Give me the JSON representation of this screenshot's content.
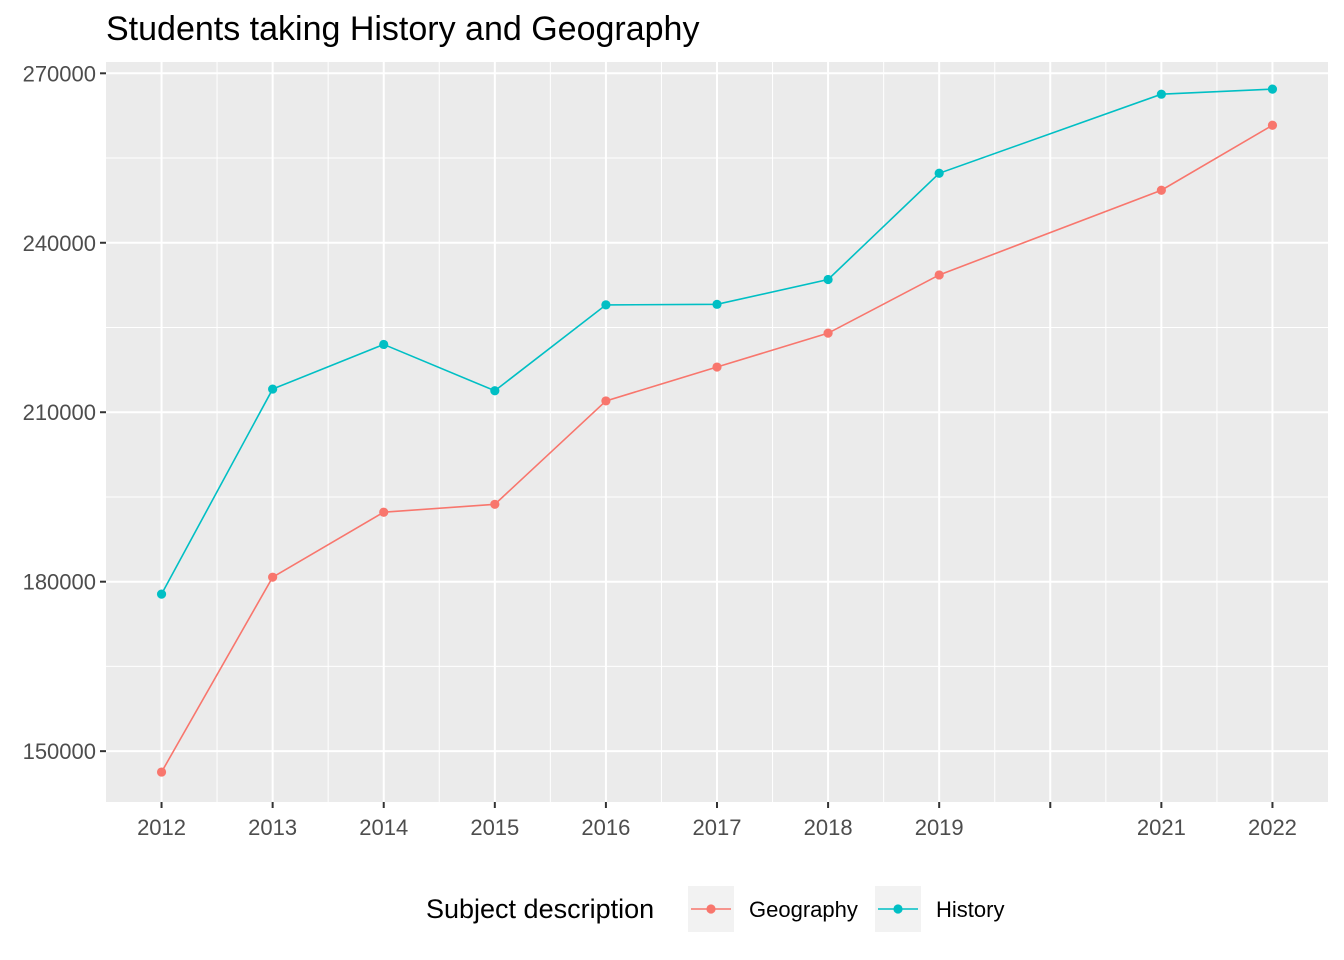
{
  "chart_data": {
    "type": "line",
    "title": "Students taking History and Geography",
    "xlabel": "",
    "ylabel": "",
    "x": [
      2012,
      2013,
      2014,
      2015,
      2016,
      2017,
      2018,
      2019,
      2021,
      2022
    ],
    "x_tick_labels": [
      "2012",
      "2013",
      "2014",
      "2015",
      "2016",
      "2017",
      "2018",
      "2019",
      "",
      "2021",
      "2022"
    ],
    "y_tick_labels": [
      "150000",
      "180000",
      "210000",
      "240000",
      "270000"
    ],
    "xlim": [
      2011.5,
      2022.5
    ],
    "ylim": [
      141000,
      272000
    ],
    "grid": true,
    "legend": {
      "title": "Subject description",
      "position": "bottom"
    },
    "series": [
      {
        "name": "Geography",
        "color": "#F8766D",
        "values": [
          146300,
          180800,
          192300,
          193700,
          212000,
          218000,
          224000,
          234300,
          249300,
          260800
        ]
      },
      {
        "name": "History",
        "color": "#00BFC4",
        "values": [
          177800,
          214100,
          222000,
          213800,
          229000,
          229100,
          233500,
          252300,
          266300,
          267200
        ]
      }
    ]
  }
}
